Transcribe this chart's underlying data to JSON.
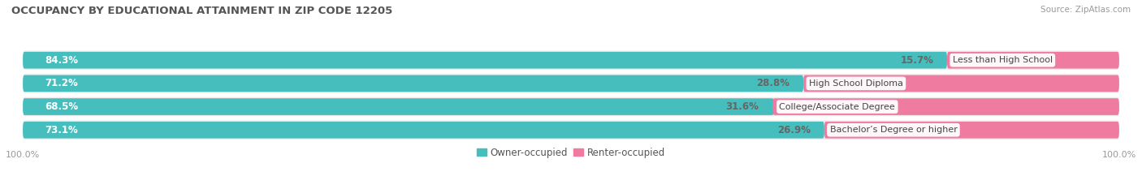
{
  "title": "OCCUPANCY BY EDUCATIONAL ATTAINMENT IN ZIP CODE 12205",
  "source": "Source: ZipAtlas.com",
  "categories": [
    "Less than High School",
    "High School Diploma",
    "College/Associate Degree",
    "Bachelor’s Degree or higher"
  ],
  "owner_pct": [
    84.3,
    71.2,
    68.5,
    73.1
  ],
  "renter_pct": [
    15.7,
    28.8,
    31.6,
    26.9
  ],
  "owner_color": "#46BEBE",
  "renter_color": "#F07BA0",
  "row_bg_color": "#EBEBEB",
  "owner_label_color": "#FFFFFF",
  "renter_label_color": "#666666",
  "category_label_color": "#444444",
  "title_color": "#555555",
  "source_color": "#999999",
  "axis_label_color": "#999999",
  "background_color": "#FFFFFF",
  "xlim_left": -100,
  "xlim_right": 100,
  "legend_owner": "Owner-occupied",
  "legend_renter": "Renter-occupied",
  "axis_label_left": "100.0%",
  "axis_label_right": "100.0%"
}
